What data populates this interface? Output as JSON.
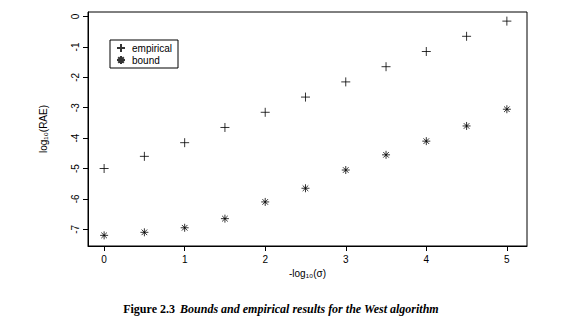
{
  "chart_data": {
    "type": "scatter",
    "title": "Figure 2.3 Bounds and empirical results for the West algorithm",
    "x_label": "-log₁₀(σ)",
    "y_label": "log₁₀(RAE)",
    "x": [
      0,
      0.5,
      1,
      1.5,
      2,
      2.5,
      3,
      3.5,
      4,
      4.5,
      5
    ],
    "series": [
      {
        "name": "empirical",
        "color": "#000000",
        "marker": "plus",
        "values": [
          -5.0,
          -4.6,
          -4.15,
          -3.65,
          -3.15,
          -2.65,
          -2.15,
          -1.65,
          -1.15,
          -0.65,
          -0.15
        ]
      },
      {
        "name": "bound",
        "color": "#000000",
        "marker": "asterisk",
        "values": [
          -7.2,
          -7.1,
          -6.95,
          -6.65,
          -6.1,
          -5.65,
          -5.05,
          -4.55,
          -4.1,
          -3.6,
          -3.05
        ]
      }
    ],
    "xlim": [
      -0.2,
      5.25
    ],
    "xticks": [
      0,
      1,
      2,
      3,
      4,
      5
    ],
    "ylim": [
      -7.55,
      0.15
    ],
    "yticks": [
      -7,
      -6,
      -5,
      -4,
      -3,
      -2,
      -1,
      0
    ],
    "grid": false,
    "legend": "upper left"
  }
}
